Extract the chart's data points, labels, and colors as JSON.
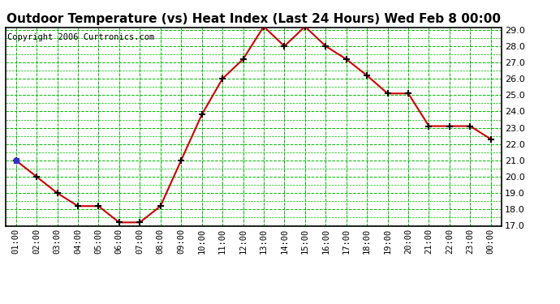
{
  "title": "Outdoor Temperature (vs) Heat Index (Last 24 Hours) Wed Feb 8 00:00",
  "copyright": "Copyright 2006 Curtronics.com",
  "hours": [
    "01:00",
    "02:00",
    "03:00",
    "04:00",
    "05:00",
    "06:00",
    "07:00",
    "08:00",
    "09:00",
    "10:00",
    "11:00",
    "12:00",
    "13:00",
    "14:00",
    "15:00",
    "16:00",
    "17:00",
    "18:00",
    "19:00",
    "20:00",
    "21:00",
    "22:00",
    "23:00",
    "00:00"
  ],
  "temps": [
    21.0,
    20.0,
    19.0,
    18.2,
    18.2,
    17.2,
    17.2,
    18.2,
    21.0,
    23.8,
    26.0,
    27.2,
    29.2,
    28.0,
    29.2,
    28.0,
    27.2,
    26.2,
    25.1,
    25.1,
    23.1,
    23.1,
    23.1,
    22.3
  ],
  "ylim_min": 17.0,
  "ylim_max": 29.0,
  "yticks": [
    17.0,
    18.0,
    19.0,
    20.0,
    21.0,
    22.0,
    23.0,
    24.0,
    25.0,
    26.0,
    27.0,
    28.0,
    29.0
  ],
  "line_color": "#cc0000",
  "marker_color": "#000000",
  "bg_color": "#ffffff",
  "plot_bg_color": "#ffffff",
  "grid_color_green": "#00bb00",
  "grid_color_gray": "#999999",
  "title_fontsize": 11,
  "copyright_fontsize": 7.5
}
